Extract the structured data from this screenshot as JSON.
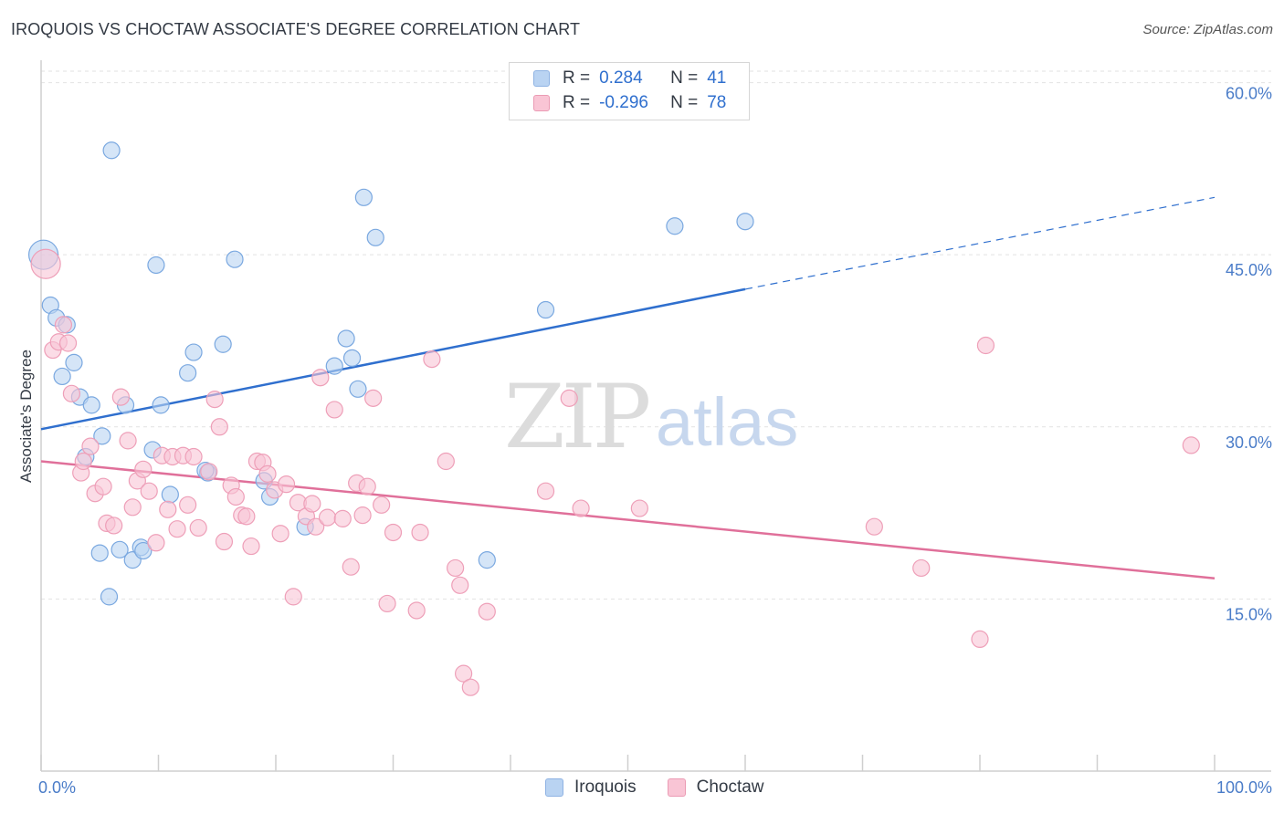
{
  "title": "IROQUOIS VS CHOCTAW ASSOCIATE'S DEGREE CORRELATION CHART",
  "source": "Source: ZipAtlas.com",
  "watermark": {
    "zip": "ZIP",
    "atlas": "atlas"
  },
  "legend": {
    "rows": [
      {
        "r_label": "R =",
        "r_value": "0.284",
        "n_label": "N =",
        "n_value": "41",
        "color": "#b9d3f2",
        "border": "#8fb3e3"
      },
      {
        "r_label": "R =",
        "r_value": "-0.296",
        "n_label": "N =",
        "n_value": "78",
        "color": "#f9c5d5",
        "border": "#eb9bb4"
      }
    ]
  },
  "bottom_legend": [
    {
      "label": "Iroquois",
      "color": "#b9d3f2",
      "border": "#8fb3e3"
    },
    {
      "label": "Choctaw",
      "color": "#f9c5d5",
      "border": "#eb9bb4"
    }
  ],
  "chart_data": {
    "type": "scatter",
    "title": "IROQUOIS VS CHOCTAW ASSOCIATE'S DEGREE CORRELATION CHART",
    "xlabel": "",
    "ylabel": "Associate's Degree",
    "xlim": [
      0,
      100
    ],
    "ylim": [
      0,
      61
    ],
    "x_tick_labels": [
      "0.0%",
      "100.0%"
    ],
    "y_ticks": [
      15,
      30,
      45,
      60
    ],
    "y_tick_labels": [
      "15.0%",
      "30.0%",
      "45.0%",
      "60.0%"
    ],
    "grid": true,
    "series": [
      {
        "name": "Iroquois",
        "color": "#7aa8e0",
        "fill": "#b9d3f2",
        "line_color": "#2f6fce",
        "trend": {
          "x0": 0,
          "y0": 29.8,
          "x1": 60,
          "y1": 42.0,
          "dash_x1": 100,
          "dash_y1": 50.0
        },
        "points": [
          [
            0.2,
            45.0,
            16
          ],
          [
            0.8,
            40.6,
            9
          ],
          [
            1.3,
            39.5,
            9
          ],
          [
            2.2,
            38.9,
            9
          ],
          [
            1.8,
            34.4,
            9
          ],
          [
            2.8,
            35.6,
            9
          ],
          [
            3.3,
            32.6,
            9
          ],
          [
            4.3,
            31.9,
            9
          ],
          [
            3.8,
            27.4,
            9
          ],
          [
            5.2,
            29.2,
            9
          ],
          [
            5.0,
            19.0,
            9
          ],
          [
            6.0,
            54.1,
            9
          ],
          [
            7.2,
            31.9,
            9
          ],
          [
            6.7,
            19.3,
            9
          ],
          [
            7.8,
            18.4,
            9
          ],
          [
            8.5,
            19.5,
            9
          ],
          [
            8.7,
            19.2,
            9
          ],
          [
            9.5,
            28.0,
            9
          ],
          [
            9.8,
            44.1,
            9
          ],
          [
            10.2,
            31.9,
            9
          ],
          [
            11.0,
            24.1,
            9
          ],
          [
            12.5,
            34.7,
            9
          ],
          [
            13.0,
            36.5,
            9
          ],
          [
            14.2,
            26.0,
            9
          ],
          [
            15.5,
            37.2,
            9
          ],
          [
            16.5,
            44.6,
            9
          ],
          [
            19.0,
            25.3,
            9
          ],
          [
            19.5,
            23.9,
            9
          ],
          [
            22.5,
            21.3,
            9
          ],
          [
            25.0,
            35.3,
            9
          ],
          [
            26.0,
            37.7,
            9
          ],
          [
            26.5,
            36.0,
            9
          ],
          [
            27.0,
            33.3,
            9
          ],
          [
            27.5,
            50.0,
            9
          ],
          [
            28.5,
            46.5,
            9
          ],
          [
            38.0,
            18.4,
            9
          ],
          [
            43.0,
            40.2,
            9
          ],
          [
            54.0,
            47.5,
            9
          ],
          [
            60.0,
            47.9,
            9
          ],
          [
            5.8,
            15.2,
            9
          ],
          [
            14.0,
            26.2,
            9
          ]
        ]
      },
      {
        "name": "Choctaw",
        "color": "#ee9fb8",
        "fill": "#f9c5d5",
        "line_color": "#e0709a",
        "trend": {
          "x0": 0,
          "y0": 27.0,
          "x1": 100,
          "y1": 16.8
        },
        "points": [
          [
            0.4,
            44.2,
            16
          ],
          [
            1.0,
            36.7,
            9
          ],
          [
            1.5,
            37.4,
            9
          ],
          [
            2.3,
            37.3,
            9
          ],
          [
            1.9,
            38.9,
            9
          ],
          [
            2.6,
            32.9,
            9
          ],
          [
            3.4,
            26.0,
            9
          ],
          [
            3.6,
            27.0,
            9
          ],
          [
            4.2,
            28.3,
            9
          ],
          [
            4.6,
            24.2,
            9
          ],
          [
            5.3,
            24.8,
            9
          ],
          [
            5.6,
            21.6,
            9
          ],
          [
            6.2,
            21.4,
            9
          ],
          [
            6.8,
            32.6,
            9
          ],
          [
            7.4,
            28.8,
            9
          ],
          [
            7.8,
            23.0,
            9
          ],
          [
            8.2,
            25.3,
            9
          ],
          [
            8.7,
            26.3,
            9
          ],
          [
            9.2,
            24.4,
            9
          ],
          [
            9.8,
            19.9,
            9
          ],
          [
            10.3,
            27.5,
            9
          ],
          [
            10.8,
            22.8,
            9
          ],
          [
            11.2,
            27.4,
            9
          ],
          [
            11.6,
            21.1,
            9
          ],
          [
            12.1,
            27.5,
            9
          ],
          [
            12.5,
            23.2,
            9
          ],
          [
            13.0,
            27.4,
            9
          ],
          [
            13.4,
            21.2,
            9
          ],
          [
            14.3,
            26.1,
            9
          ],
          [
            14.8,
            32.4,
            9
          ],
          [
            15.2,
            30.0,
            9
          ],
          [
            15.6,
            20.0,
            9
          ],
          [
            16.2,
            24.9,
            9
          ],
          [
            16.6,
            23.9,
            9
          ],
          [
            17.1,
            22.3,
            9
          ],
          [
            17.5,
            22.2,
            9
          ],
          [
            17.9,
            19.6,
            9
          ],
          [
            18.4,
            27.0,
            9
          ],
          [
            18.9,
            26.9,
            9
          ],
          [
            19.3,
            25.9,
            9
          ],
          [
            19.9,
            24.5,
            9
          ],
          [
            20.4,
            20.7,
            9
          ],
          [
            20.9,
            25.0,
            9
          ],
          [
            21.5,
            15.2,
            9
          ],
          [
            21.9,
            23.4,
            9
          ],
          [
            22.6,
            22.2,
            9
          ],
          [
            23.1,
            23.3,
            9
          ],
          [
            23.4,
            21.3,
            9
          ],
          [
            23.8,
            34.3,
            9
          ],
          [
            24.4,
            22.1,
            9
          ],
          [
            25.0,
            31.5,
            9
          ],
          [
            25.7,
            22.0,
            9
          ],
          [
            26.4,
            17.8,
            9
          ],
          [
            26.9,
            25.1,
            9
          ],
          [
            27.4,
            22.3,
            9
          ],
          [
            27.8,
            24.8,
            9
          ],
          [
            28.3,
            32.5,
            9
          ],
          [
            29.0,
            23.2,
            9
          ],
          [
            29.5,
            14.6,
            9
          ],
          [
            30.0,
            20.8,
            9
          ],
          [
            32.0,
            14.0,
            9
          ],
          [
            32.3,
            20.8,
            9
          ],
          [
            33.3,
            35.9,
            9
          ],
          [
            34.5,
            27.0,
            9
          ],
          [
            35.3,
            17.7,
            9
          ],
          [
            35.7,
            16.2,
            9
          ],
          [
            36.0,
            8.5,
            9
          ],
          [
            36.6,
            7.3,
            9
          ],
          [
            38.0,
            13.9,
            9
          ],
          [
            43.0,
            24.4,
            9
          ],
          [
            45.0,
            32.5,
            9
          ],
          [
            46.0,
            22.9,
            9
          ],
          [
            51.0,
            22.9,
            9
          ],
          [
            71.0,
            21.3,
            9
          ],
          [
            75.0,
            17.7,
            9
          ],
          [
            80.0,
            11.5,
            9
          ],
          [
            80.5,
            37.1,
            9
          ],
          [
            98.0,
            28.4,
            9
          ]
        ]
      }
    ]
  }
}
